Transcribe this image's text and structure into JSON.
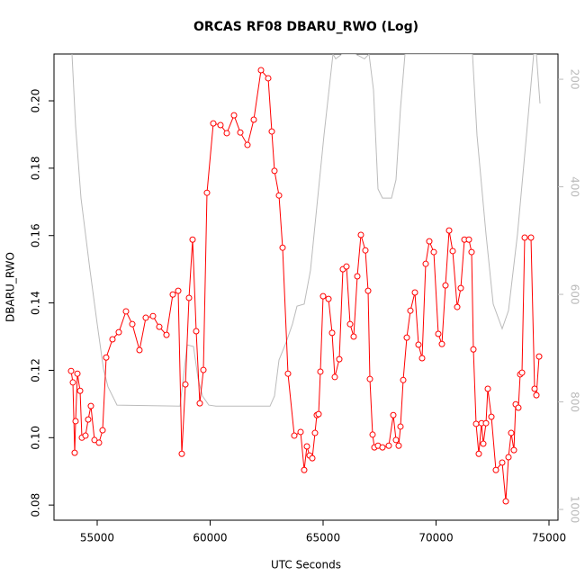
{
  "chart_data": {
    "type": "line",
    "title": "ORCAS RF08 DBARU_RWO (Log)",
    "xlabel": "UTC Seconds",
    "ylabel": "DBARU_RWO",
    "xlim": [
      53088,
      75398
    ],
    "ylim": [
      0.0755,
      0.2139
    ],
    "y2lim": [
      1020,
      153
    ],
    "xticks": [
      55000,
      60000,
      65000,
      70000,
      75000
    ],
    "yticks": [
      0.08,
      {
        "value": 0.1,
        "label": "0.10"
      },
      0.12,
      0.14,
      0.16,
      0.18,
      {
        "value": 0.2,
        "label": "0.20"
      }
    ],
    "y2ticks": [
      200,
      400,
      600,
      800,
      1000
    ],
    "series": [
      {
        "color": "#ff0000",
        "markers": true,
        "x": [
          53845,
          53924,
          54004,
          54044,
          54124,
          54243,
          54323,
          54482,
          54602,
          54721,
          54880,
          55080,
          55239,
          55398,
          55677,
          55956,
          56275,
          56554,
          56872,
          57151,
          57470,
          57749,
          58068,
          58347,
          58586,
          58745,
          58905,
          59064,
          59223,
          59382,
          59542,
          59701,
          59860,
          60139,
          60458,
          60737,
          61056,
          61335,
          61653,
          61932,
          62251,
          62570,
          62729,
          62848,
          63048,
          63207,
          63446,
          63725,
          64004,
          64163,
          64283,
          64402,
          64522,
          64641,
          64721,
          64801,
          64880,
          65000,
          65239,
          65398,
          65518,
          65717,
          65876,
          66036,
          66195,
          66354,
          66514,
          66673,
          66872,
          66992,
          67072,
          67191,
          67271,
          67430,
          67629,
          67908,
          68107,
          68227,
          68346,
          68426,
          68546,
          68705,
          68864,
          69064,
          69223,
          69382,
          69542,
          69701,
          69900,
          70099,
          70259,
          70418,
          70578,
          70737,
          70936,
          71095,
          71255,
          71454,
          71573,
          71653,
          71773,
          71892,
          72012,
          72091,
          72211,
          72291,
          72450,
          72649,
          72928,
          73088,
          73207,
          73327,
          73446,
          73526,
          73645,
          73725,
          73805,
          73924,
          74203,
          74362,
          74442,
          74562
        ],
        "values": [
          0.1198,
          0.1164,
          0.0955,
          0.1049,
          0.119,
          0.1139,
          0.1,
          0.1006,
          0.1054,
          0.1094,
          0.0993,
          0.0985,
          0.1022,
          0.1238,
          0.1292,
          0.1313,
          0.1375,
          0.1337,
          0.126,
          0.1356,
          0.1361,
          0.1329,
          0.1305,
          0.1425,
          0.1436,
          0.0952,
          0.1158,
          0.1415,
          0.1588,
          0.1316,
          0.1102,
          0.1201,
          0.1727,
          0.1933,
          0.1928,
          0.1904,
          0.1957,
          0.1906,
          0.1869,
          0.1944,
          0.2091,
          0.2067,
          0.1909,
          0.1792,
          0.1719,
          0.1564,
          0.119,
          0.1006,
          0.1017,
          0.0904,
          0.0974,
          0.0947,
          0.0939,
          0.1014,
          0.1067,
          0.107,
          0.1196,
          0.142,
          0.1412,
          0.1311,
          0.118,
          0.1233,
          0.15,
          0.1508,
          0.1337,
          0.13,
          0.1479,
          0.1602,
          0.1556,
          0.1436,
          0.1174,
          0.1009,
          0.0971,
          0.0976,
          0.0971,
          0.0976,
          0.1067,
          0.0993,
          0.0976,
          0.1033,
          0.1171,
          0.1297,
          0.1377,
          0.1431,
          0.1276,
          0.1236,
          0.1516,
          0.1583,
          0.1551,
          0.1308,
          0.1278,
          0.1452,
          0.1615,
          0.1554,
          0.1388,
          0.1444,
          0.1588,
          0.1588,
          0.1551,
          0.1262,
          0.1041,
          0.0952,
          0.1043,
          0.0982,
          0.1043,
          0.1145,
          0.1062,
          0.0904,
          0.0926,
          0.0811,
          0.0942,
          0.1014,
          0.0963,
          0.1099,
          0.1089,
          0.1188,
          0.1193,
          0.1594,
          0.1594,
          0.1145,
          0.1126,
          0.1241
        ]
      },
      {
        "color": "#bbbbbb",
        "axis": "y2",
        "markers": false,
        "x": [
          53884,
          54044,
          54283,
          54681,
          55000,
          55279,
          55478,
          55876,
          58665,
          58984,
          59263,
          59462,
          59661,
          59940,
          60259,
          62649,
          62849,
          63048,
          63367,
          63645,
          63845,
          64163,
          64442,
          64641,
          65040,
          65438,
          65558,
          65837,
          66434,
          66833,
          67032,
          67231,
          67430,
          67629,
          68028,
          68227,
          68426,
          68625,
          71614,
          71813,
          72211,
          72530,
          72928,
          73207,
          73606,
          74004,
          74323,
          74442,
          74602
        ],
        "values": [
          153,
          287,
          421,
          555,
          655,
          739,
          772,
          806,
          808,
          694,
          697,
          756,
          789,
          806,
          808,
          808,
          789,
          722,
          689,
          655,
          622,
          618,
          555,
          471,
          304,
          153,
          162,
          153,
          153,
          162,
          153,
          220,
          404,
          421,
          421,
          387,
          254,
          153,
          153,
          304,
          488,
          618,
          664,
          630,
          488,
          304,
          153,
          153,
          245
        ]
      }
    ]
  }
}
